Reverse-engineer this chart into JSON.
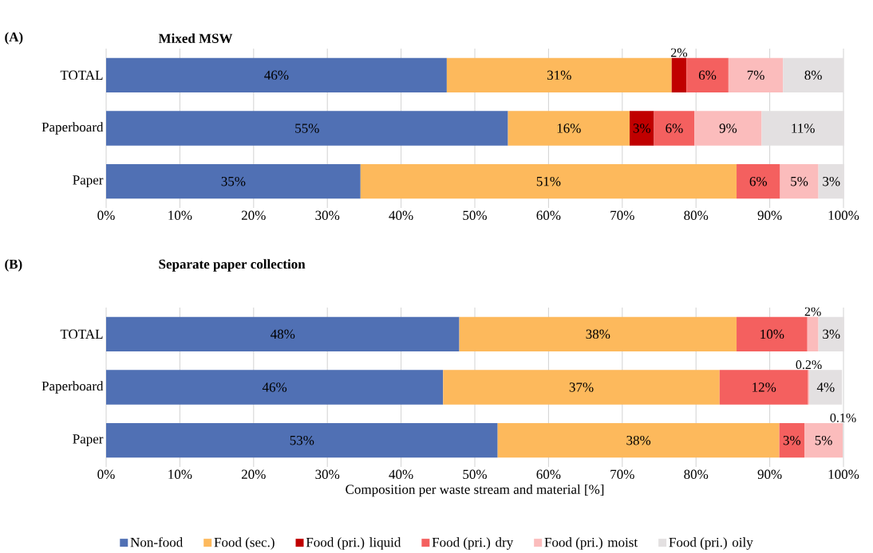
{
  "chart_data": [
    {
      "type": "bar",
      "orientation": "horizontal",
      "stacked": true,
      "title": "Mixed MSW",
      "annotations": [
        "(A)"
      ],
      "categories": [
        "TOTAL",
        "Paperboard",
        "Paper"
      ],
      "xlim": [
        0,
        100
      ],
      "xticks": [
        {
          "value": 0,
          "label": "0%"
        },
        {
          "value": 10,
          "label": "10%"
        },
        {
          "value": 20,
          "label": "20%"
        },
        {
          "value": 30,
          "label": "30%"
        },
        {
          "value": 40,
          "label": "40%"
        },
        {
          "value": 50,
          "label": "50%"
        },
        {
          "value": 60,
          "label": "60%"
        },
        {
          "value": 70,
          "label": "70%"
        },
        {
          "value": 80,
          "label": "80%"
        },
        {
          "value": 90,
          "label": "90%"
        },
        {
          "value": 100,
          "label": "100%"
        }
      ],
      "grid": "x",
      "series": [
        {
          "color": "#5070b4",
          "values": [
            46.2,
            54.5,
            34.5
          ],
          "value_labels": [
            "46%",
            "55%",
            "35%"
          ]
        },
        {
          "color": "#fdb95c",
          "values": [
            30.5,
            16.5,
            51.0
          ],
          "value_labels": [
            "31%",
            "16%",
            "51%"
          ]
        },
        {
          "color": "#c00000",
          "values": [
            2.0,
            3.3,
            null
          ],
          "value_labels": [
            "2%",
            "3%",
            null
          ]
        },
        {
          "color": "#f4605f",
          "values": [
            5.7,
            5.5,
            5.9
          ],
          "value_labels": [
            "6%",
            "6%",
            "6%"
          ]
        },
        {
          "color": "#fbbcbc",
          "values": [
            7.4,
            9.1,
            5.2
          ],
          "value_labels": [
            "7%",
            "9%",
            "5%"
          ]
        },
        {
          "color": "#e3e0e1",
          "values": [
            8.2,
            11.2,
            3.5
          ],
          "value_labels": [
            "8%",
            "11%",
            "3%"
          ]
        }
      ]
    },
    {
      "type": "bar",
      "orientation": "horizontal",
      "stacked": true,
      "title": "Separate paper collection",
      "annotations": [
        "(B)"
      ],
      "xlabel": "Composition per waste stream and material [%]",
      "legend": "bottom",
      "categories": [
        "TOTAL",
        "Paperboard",
        "Paper"
      ],
      "xlim": [
        0,
        100
      ],
      "xticks": [
        {
          "value": 0,
          "label": "0%"
        },
        {
          "value": 10,
          "label": "10%"
        },
        {
          "value": 20,
          "label": "20%"
        },
        {
          "value": 30,
          "label": "30%"
        },
        {
          "value": 40,
          "label": "40%"
        },
        {
          "value": 50,
          "label": "50%"
        },
        {
          "value": 60,
          "label": "60%"
        },
        {
          "value": 70,
          "label": "70%"
        },
        {
          "value": 80,
          "label": "80%"
        },
        {
          "value": 90,
          "label": "90%"
        },
        {
          "value": 100,
          "label": "100%"
        }
      ],
      "grid": "x",
      "series": [
        {
          "name": "Non-food",
          "color": "#5070b4",
          "values": [
            47.9,
            45.7,
            53.1
          ],
          "value_labels": [
            "48%",
            "46%",
            "53%"
          ]
        },
        {
          "name": "Food (sec.)",
          "color": "#fdb95c",
          "values": [
            37.6,
            37.5,
            38.2
          ],
          "value_labels": [
            "38%",
            "37%",
            "38%"
          ]
        },
        {
          "name": "Food (pri.) liquid",
          "color": "#c00000",
          "values": [
            null,
            null,
            null
          ],
          "value_labels": [
            null,
            null,
            null
          ]
        },
        {
          "name": "Food (pri.) dry",
          "color": "#f4605f",
          "values": [
            9.6,
            12.0,
            3.4
          ],
          "value_labels": [
            "10%",
            "12%",
            "3%"
          ]
        },
        {
          "name": "Food (pri.) moist",
          "color": "#fbbcbc",
          "values": [
            1.5,
            0.2,
            5.2
          ],
          "value_labels": [
            "2%",
            "0.2%",
            "5%"
          ]
        },
        {
          "name": "Food (pri.) oily",
          "color": "#e3e0e1",
          "values": [
            3.5,
            4.4,
            0.1
          ],
          "value_labels": [
            "3%",
            "4%",
            "0.1%"
          ]
        }
      ]
    }
  ]
}
